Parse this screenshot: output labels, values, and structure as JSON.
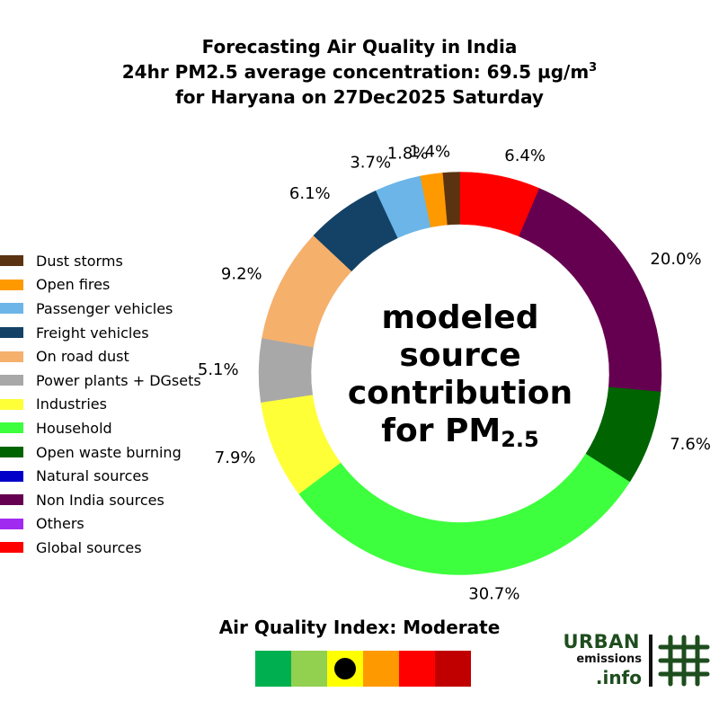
{
  "title": {
    "line1": "Forecasting Air Quality in India",
    "line2_prefix": "24hr PM2.5 average concentration: 69.5 µg/m",
    "line2_sup": "3",
    "line3": "for Haryana on 27Dec2025 Saturday"
  },
  "center_label": {
    "line1": "modeled",
    "line2": "source",
    "line3": "contribution",
    "line4_prefix": "for PM",
    "line4_sub": "2.5"
  },
  "aqi": {
    "title": "Air Quality Index: Moderate",
    "category": "Moderate",
    "selected_index": 2,
    "colors": [
      "#00b050",
      "#92d050",
      "#ffff00",
      "#ff9900",
      "#ff0000",
      "#c00000"
    ]
  },
  "logo": {
    "line1": "URBAN",
    "line2": "emissions",
    "line3": ".info",
    "color": "#1e4d1e"
  },
  "chart_data": {
    "type": "pie",
    "subtype": "donut",
    "title": "Forecasting Air Quality in India — 24hr PM2.5 average concentration: 69.5 µg/m3 for Haryana on 27Dec2025 Saturday",
    "center_text": "modeled source contribution for PM2.5",
    "start_angle_deg": 90,
    "direction": "counterclockwise",
    "legend_position": "left",
    "categories": [
      "Dust storms",
      "Open fires",
      "Passenger vehicles",
      "Freight vehicles",
      "On road dust",
      "Power plants + DGsets",
      "Industries",
      "Household",
      "Open waste burning",
      "Natural sources",
      "Non India sources",
      "Others",
      "Global sources"
    ],
    "values": [
      1.4,
      1.8,
      3.7,
      6.1,
      9.2,
      5.1,
      7.9,
      30.7,
      7.6,
      0.0,
      20.0,
      0.0,
      6.4
    ],
    "labels": [
      "1.4%",
      "1.8%",
      "3.7%",
      "6.1%",
      "9.2%",
      "5.1%",
      "7.9%",
      "30.7%",
      "7.6%",
      "",
      "20.0%",
      "",
      "6.4%"
    ],
    "colors": [
      "#5c3310",
      "#ff9900",
      "#6bb5e8",
      "#134266",
      "#f5b06c",
      "#a8a8a8",
      "#ffff38",
      "#3dff3d",
      "#006400",
      "#0000c8",
      "#650050",
      "#a02af0",
      "#ff0000"
    ],
    "units": "%"
  }
}
